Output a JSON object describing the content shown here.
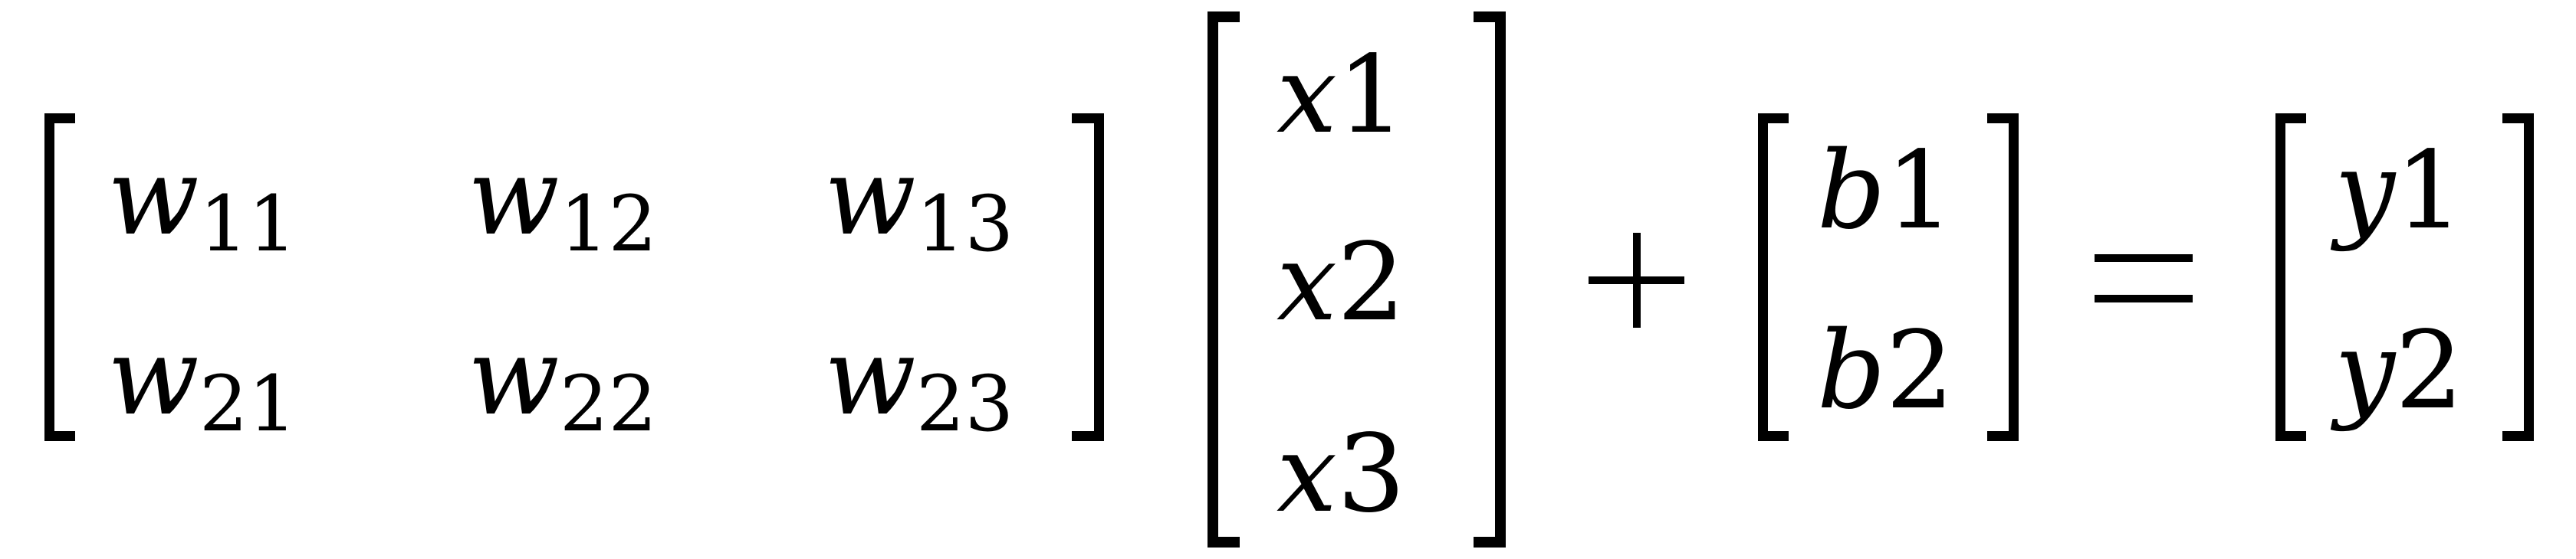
{
  "equation": {
    "w_matrix": {
      "rows": [
        [
          {
            "var": "w",
            "sub": "11"
          },
          {
            "var": "w",
            "sub": "12"
          },
          {
            "var": "w",
            "sub": "13"
          }
        ],
        [
          {
            "var": "w",
            "sub": "21"
          },
          {
            "var": "w",
            "sub": "22"
          },
          {
            "var": "w",
            "sub": "23"
          }
        ]
      ]
    },
    "x_vector": [
      {
        "var": "x",
        "index": "1"
      },
      {
        "var": "x",
        "index": "2"
      },
      {
        "var": "x",
        "index": "3"
      }
    ],
    "b_vector": [
      {
        "var": "b",
        "index": "1"
      },
      {
        "var": "b",
        "index": "2"
      }
    ],
    "y_vector": [
      {
        "var": "y",
        "index": "1"
      },
      {
        "var": "y",
        "index": "2"
      }
    ],
    "operators": {
      "plus": "+",
      "equals": "="
    }
  }
}
